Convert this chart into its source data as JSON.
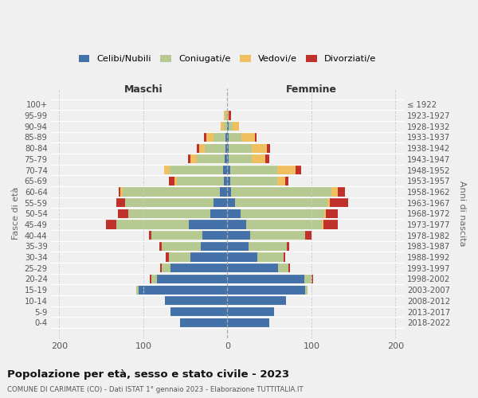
{
  "age_groups": [
    "100+",
    "95-99",
    "90-94",
    "85-89",
    "80-84",
    "75-79",
    "70-74",
    "65-69",
    "60-64",
    "55-59",
    "50-54",
    "45-49",
    "40-44",
    "35-39",
    "30-34",
    "25-29",
    "20-24",
    "15-19",
    "10-14",
    "5-9",
    "0-4"
  ],
  "birth_years": [
    "≤ 1922",
    "1923-1927",
    "1928-1932",
    "1933-1937",
    "1938-1942",
    "1943-1947",
    "1948-1952",
    "1953-1957",
    "1958-1962",
    "1963-1967",
    "1968-1972",
    "1973-1977",
    "1978-1982",
    "1983-1987",
    "1988-1992",
    "1993-1997",
    "1998-2002",
    "2003-2007",
    "2008-2012",
    "2013-2017",
    "2018-2022"
  ],
  "maschi_celibi": [
    0,
    0,
    0,
    2,
    2,
    3,
    5,
    4,
    9,
    16,
    20,
    46,
    30,
    32,
    44,
    68,
    84,
    106,
    74,
    68,
    56
  ],
  "maschi_coniugati": [
    0,
    2,
    4,
    14,
    25,
    33,
    64,
    56,
    116,
    106,
    98,
    86,
    60,
    46,
    26,
    10,
    6,
    2,
    0,
    0,
    0
  ],
  "maschi_vedovi": [
    0,
    2,
    4,
    9,
    7,
    8,
    6,
    3,
    2,
    0,
    0,
    0,
    0,
    0,
    0,
    0,
    0,
    0,
    0,
    0,
    0
  ],
  "maschi_divorziati": [
    0,
    0,
    0,
    3,
    2,
    3,
    0,
    7,
    2,
    10,
    12,
    12,
    3,
    3,
    3,
    2,
    2,
    0,
    0,
    0,
    0
  ],
  "femmine_nubili": [
    0,
    0,
    2,
    2,
    2,
    2,
    3,
    3,
    4,
    9,
    16,
    22,
    27,
    25,
    36,
    60,
    92,
    93,
    70,
    56,
    50
  ],
  "femmine_coniugate": [
    0,
    0,
    4,
    15,
    27,
    27,
    56,
    56,
    120,
    110,
    99,
    90,
    66,
    46,
    31,
    13,
    8,
    2,
    0,
    0,
    0
  ],
  "femmine_vedove": [
    0,
    2,
    8,
    16,
    18,
    16,
    22,
    10,
    7,
    3,
    2,
    2,
    0,
    0,
    0,
    0,
    0,
    0,
    0,
    0,
    0
  ],
  "femmine_divorziate": [
    0,
    2,
    0,
    2,
    4,
    5,
    7,
    4,
    9,
    22,
    14,
    17,
    7,
    3,
    2,
    2,
    2,
    0,
    0,
    0,
    0
  ],
  "colors_celibi": "#4472a8",
  "colors_coniugati": "#b5c990",
  "colors_vedovi": "#f0c060",
  "colors_divorziati": "#c0312b",
  "xlim_min": -210,
  "xlim_max": 210,
  "xticks": [
    -200,
    -100,
    0,
    100,
    200
  ],
  "xticklabels": [
    "200",
    "100",
    "0",
    "100",
    "200"
  ],
  "title": "Popolazione per età, sesso e stato civile - 2023",
  "subtitle": "COMUNE DI CARIMATE (CO) - Dati ISTAT 1° gennaio 2023 - Elaborazione TUTTITALIA.IT",
  "ylabel_left": "Fasce di età",
  "ylabel_right": "Anni di nascita",
  "label_maschi": "Maschi",
  "label_femmine": "Femmine",
  "legend_labels": [
    "Celibi/Nubili",
    "Coniugati/e",
    "Vedovi/e",
    "Divorziati/e"
  ],
  "bg_color": "#f0f0f0"
}
